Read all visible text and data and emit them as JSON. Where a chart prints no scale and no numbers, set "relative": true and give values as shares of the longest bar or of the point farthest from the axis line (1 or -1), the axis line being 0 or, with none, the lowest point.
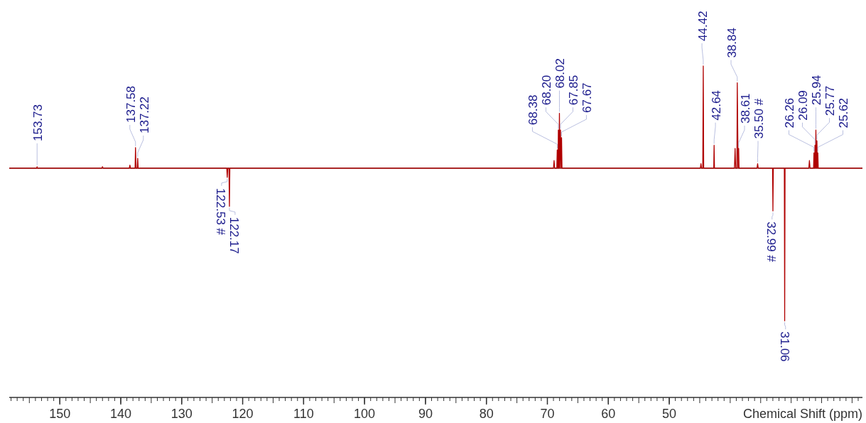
{
  "chart_data": {
    "type": "line",
    "xlabel": "Chemical Shift (ppm)",
    "relative": true,
    "xlim": [
      158.3,
      18.3
    ],
    "xticks": [
      150,
      140,
      130,
      120,
      110,
      100,
      90,
      80,
      70,
      60,
      50
    ],
    "series": [
      {
        "color": "#b00000",
        "x": [
          158.3,
          153.8,
          153.73,
          153.66,
          143.1,
          143.0,
          142.9,
          138.6,
          138.5,
          138.4,
          137.65,
          137.58,
          137.5,
          137.3,
          137.22,
          137.15,
          122.6,
          122.53,
          122.45,
          122.25,
          122.17,
          122.1,
          69.0,
          68.9,
          68.8,
          68.45,
          68.38,
          68.3,
          68.25,
          68.2,
          68.1,
          68.02,
          67.95,
          67.85,
          67.75,
          67.67,
          67.6,
          44.9,
          44.8,
          44.7,
          44.5,
          44.42,
          44.35,
          42.7,
          42.64,
          42.58,
          39.3,
          39.2,
          39.1,
          38.9,
          38.84,
          38.7,
          38.61,
          38.55,
          35.6,
          35.5,
          35.4,
          33.05,
          32.99,
          32.93,
          31.12,
          31.06,
          31.0,
          27.1,
          27.0,
          26.9,
          26.32,
          26.26,
          26.2,
          26.15,
          26.09,
          26.0,
          25.94,
          25.85,
          25.77,
          25.7,
          25.62,
          25.55,
          18.3
        ],
        "values": [
          0,
          0,
          0.01,
          0,
          0,
          0.01,
          0,
          0,
          0.02,
          0,
          0,
          0.135,
          0,
          0,
          0.065,
          0,
          0,
          -0.06,
          0,
          0,
          -0.25,
          0,
          0,
          0.05,
          0,
          0,
          0.12,
          0,
          0,
          0.25,
          0,
          0.36,
          0,
          0.25,
          0,
          0.2,
          0,
          0,
          0.03,
          0,
          0,
          0.67,
          0,
          0,
          0.15,
          0,
          0,
          0.13,
          0,
          0,
          0.56,
          0,
          0.13,
          0,
          0,
          0.03,
          0,
          0,
          -0.28,
          0,
          0,
          -1,
          0,
          0,
          0.05,
          0,
          0,
          0.1,
          0,
          0,
          0.15,
          0,
          0.25,
          0,
          0.18,
          0,
          0.1,
          0,
          0
        ]
      }
    ],
    "annotations": [
      {
        "text": "153.73",
        "x": 153.73,
        "y": 0.01
      },
      {
        "text": "137.58",
        "x": 137.58,
        "y": 0.135
      },
      {
        "text": "137.22",
        "x": 137.22,
        "y": 0.065
      },
      {
        "text": "122.53 #",
        "x": 122.53,
        "y": -0.06
      },
      {
        "text": "122.17",
        "x": 122.17,
        "y": -0.25
      },
      {
        "text": "68.38",
        "x": 68.38,
        "y": 0.12
      },
      {
        "text": "68.20",
        "x": 68.2,
        "y": 0.25
      },
      {
        "text": "68.02",
        "x": 68.02,
        "y": 0.36
      },
      {
        "text": "67.85",
        "x": 67.85,
        "y": 0.25
      },
      {
        "text": "67.67",
        "x": 67.67,
        "y": 0.2
      },
      {
        "text": "44.42",
        "x": 44.42,
        "y": 0.67
      },
      {
        "text": "42.64",
        "x": 42.64,
        "y": 0.15
      },
      {
        "text": "38.84",
        "x": 38.84,
        "y": 0.56
      },
      {
        "text": "38.61",
        "x": 38.61,
        "y": 0.13
      },
      {
        "text": "35.50 #",
        "x": 35.5,
        "y": 0.03
      },
      {
        "text": "32.99 #",
        "x": 32.99,
        "y": -0.28
      },
      {
        "text": "31.06",
        "x": 31.06,
        "y": -1
      },
      {
        "text": "26.26",
        "x": 26.26,
        "y": 0.1
      },
      {
        "text": "26.09",
        "x": 26.09,
        "y": 0.15
      },
      {
        "text": "25.94",
        "x": 25.94,
        "y": 0.25
      },
      {
        "text": "25.77",
        "x": 25.77,
        "y": 0.18
      },
      {
        "text": "25.62",
        "x": 25.62,
        "y": 0.1
      }
    ]
  }
}
